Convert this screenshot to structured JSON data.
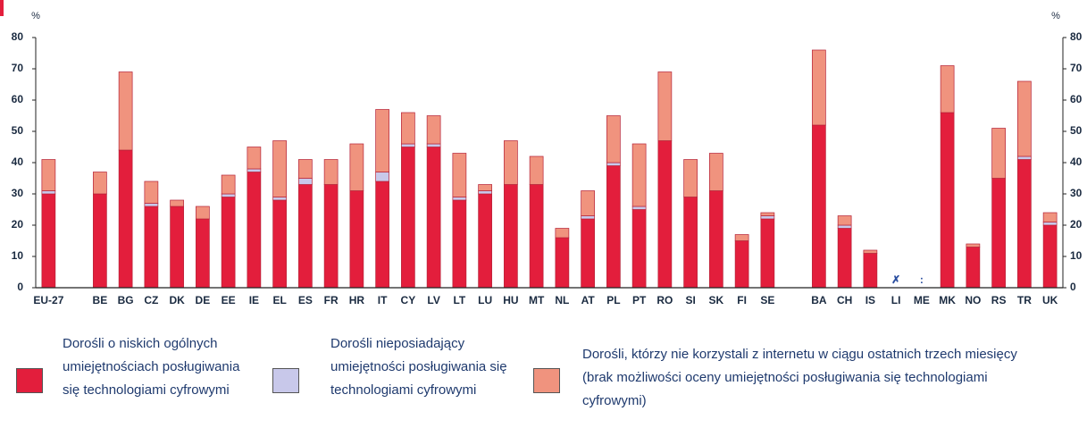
{
  "chart_data": {
    "type": "stacked_bar",
    "y_label": "%",
    "y2_label": "%",
    "categories": [
      "EU-27",
      null,
      "BE",
      "BG",
      "CZ",
      "DK",
      "DE",
      "EE",
      "IE",
      "EL",
      "ES",
      "FR",
      "HR",
      "IT",
      "CY",
      "LV",
      "LT",
      "LU",
      "HU",
      "MT",
      "NL",
      "AT",
      "PL",
      "PT",
      "RO",
      "SI",
      "SK",
      "FI",
      "SE",
      null,
      "BA",
      "CH",
      "IS",
      "LI",
      "ME",
      "MK",
      "NO",
      "RS",
      "TR",
      "UK"
    ],
    "series": [
      {
        "name": "Dorośli o niskich ogólnych umiejętnościach posługiwania się technologiami cyfrowymi",
        "color": "#e31e3c",
        "values": [
          30,
          null,
          30,
          44,
          26,
          26,
          22,
          29,
          37,
          28,
          33,
          33,
          31,
          34,
          45,
          45,
          28,
          30,
          33,
          33,
          16,
          22,
          39,
          25,
          47,
          29,
          31,
          15,
          22,
          null,
          52,
          19,
          11,
          null,
          null,
          56,
          13,
          35,
          41,
          20
        ]
      },
      {
        "name": "Dorośli nieposiadający umiejętności posługiwania się technologiami cyfrowymi",
        "color": "#c8c8ea",
        "values": [
          1,
          null,
          0,
          0,
          1,
          0,
          0,
          1,
          1,
          1,
          2,
          0,
          0,
          3,
          1,
          1,
          1,
          1,
          0,
          0,
          0,
          1,
          1,
          1,
          0,
          0,
          0,
          0,
          1,
          null,
          0,
          1,
          0,
          null,
          null,
          0,
          0,
          0,
          1,
          1
        ]
      },
      {
        "name": "Dorośli, którzy nie korzystali z internetu w ciągu ostatnich trzech miesięcy (brak możliwości oceny umiejętności posługiwania się technologiami cyfrowymi)",
        "color": "#f0937e",
        "values": [
          10,
          null,
          7,
          25,
          7,
          2,
          4,
          6,
          7,
          18,
          6,
          8,
          15,
          20,
          10,
          9,
          14,
          2,
          14,
          9,
          3,
          8,
          15,
          20,
          22,
          12,
          12,
          2,
          1,
          null,
          24,
          3,
          1,
          null,
          null,
          15,
          1,
          16,
          24,
          3
        ]
      }
    ],
    "annotations": [
      {
        "at": "LI",
        "text": "✗"
      },
      {
        "at": "ME",
        "text": ":"
      }
    ],
    "ylim": [
      0,
      80
    ],
    "yticks": [
      0,
      10,
      20,
      30,
      40,
      50,
      60,
      70,
      80
    ],
    "y2lim": [
      0,
      80
    ],
    "y2ticks": [
      0,
      10,
      20,
      30,
      40,
      50,
      60,
      70,
      80
    ],
    "grid": false
  }
}
